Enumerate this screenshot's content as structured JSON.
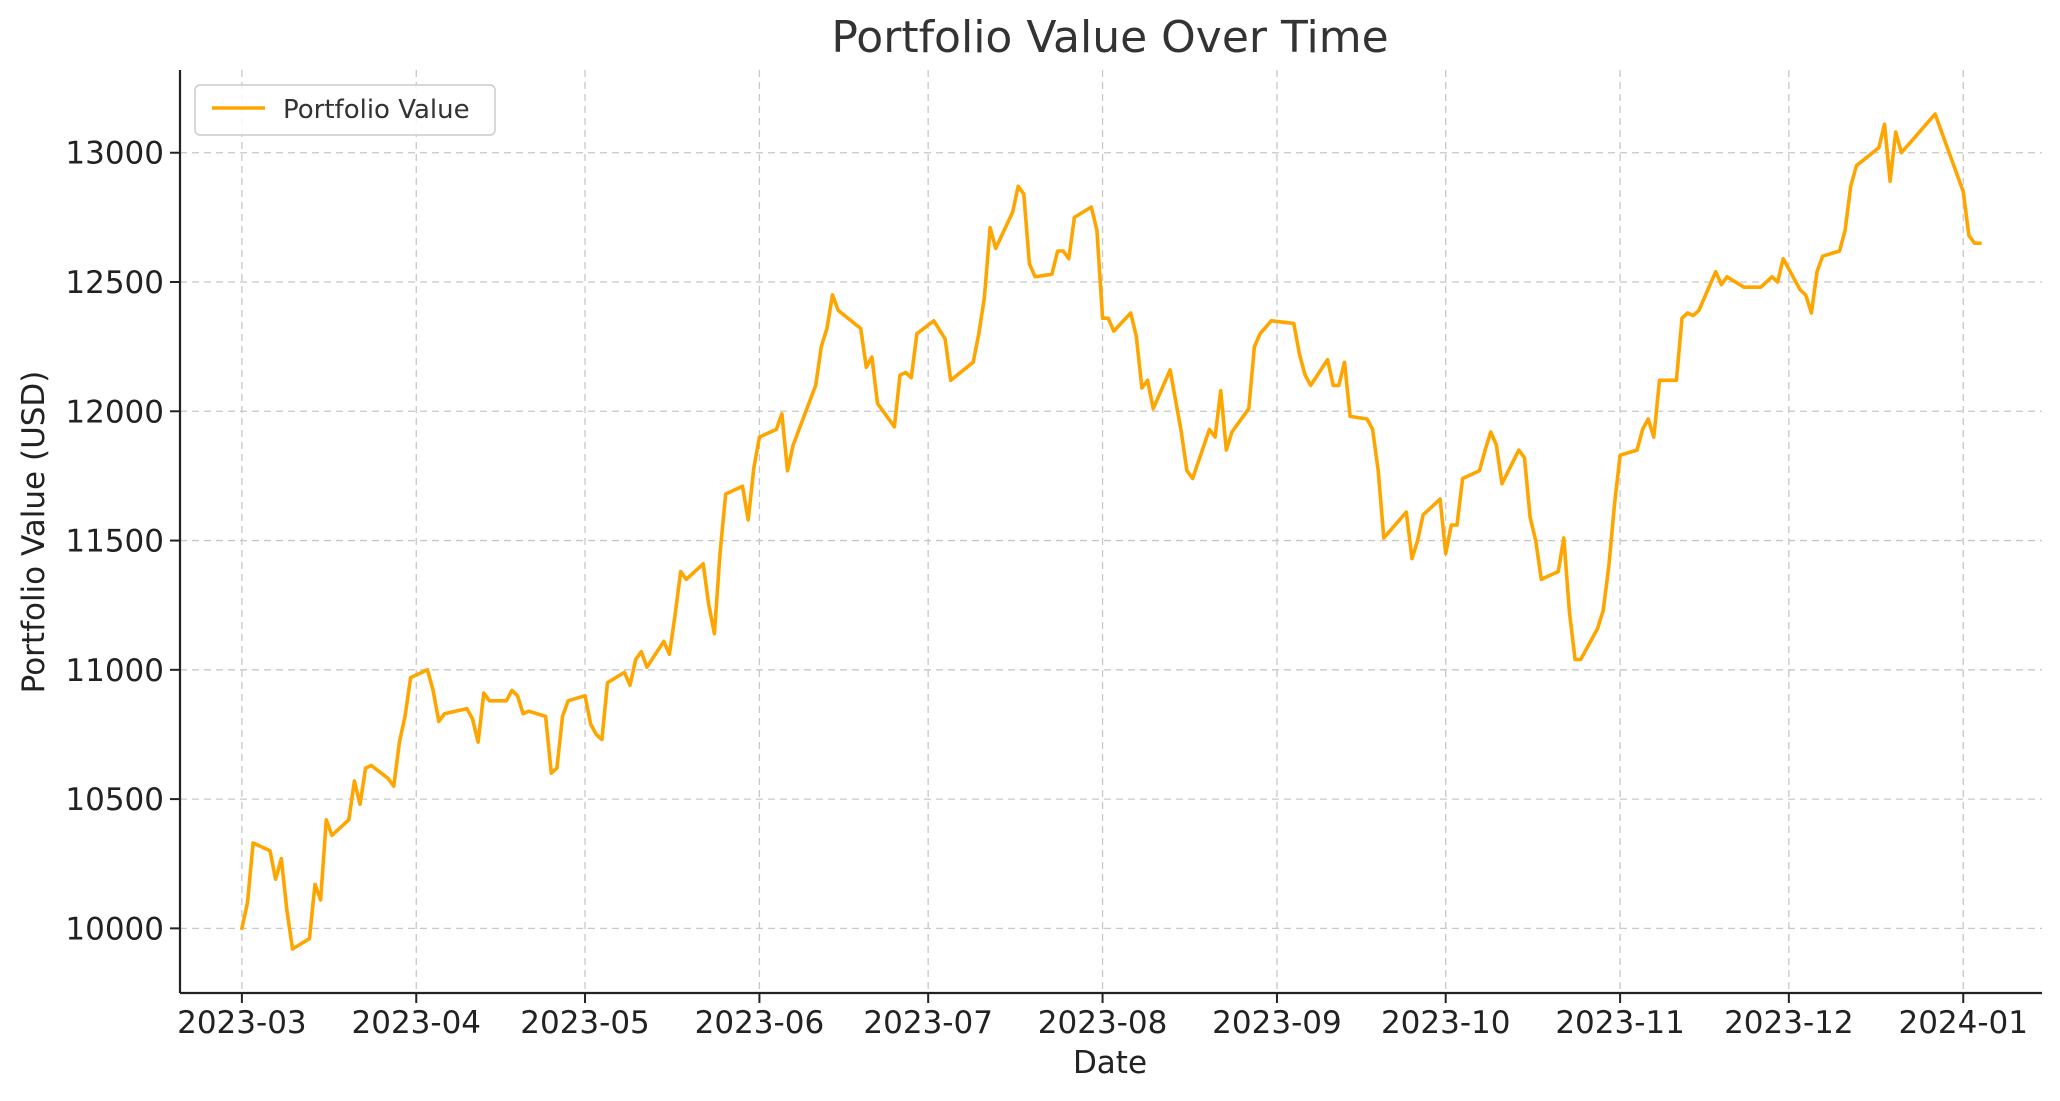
{
  "chart_data": {
    "type": "line",
    "title": "Portfolio Value Over Time",
    "xlabel": "Date",
    "ylabel": "Portfolio Value (USD)",
    "ylim": [
      9750,
      13320
    ],
    "x_ticks": [
      "2023-03",
      "2023-04",
      "2023-05",
      "2023-06",
      "2023-07",
      "2023-08",
      "2023-09",
      "2023-10",
      "2023-11",
      "2023-12",
      "2024-01"
    ],
    "x_tick_days": [
      0,
      31,
      61,
      92,
      122,
      153,
      184,
      214,
      245,
      275,
      306
    ],
    "y_ticks": [
      10000,
      10500,
      11000,
      11500,
      12000,
      12500,
      13000
    ],
    "grid": true,
    "legend": {
      "position": "top-left",
      "entries": [
        "Portfolio Value"
      ]
    },
    "series": [
      {
        "name": "Portfolio Value",
        "color": "#ffa500",
        "x_unit": "days since 2023-03-01",
        "points": [
          [
            0,
            10000
          ],
          [
            1,
            10100
          ],
          [
            2,
            10330
          ],
          [
            5,
            10300
          ],
          [
            6,
            10190
          ],
          [
            7,
            10270
          ],
          [
            8,
            10070
          ],
          [
            9,
            9920
          ],
          [
            12,
            9960
          ],
          [
            13,
            10170
          ],
          [
            14,
            10110
          ],
          [
            15,
            10420
          ],
          [
            16,
            10360
          ],
          [
            19,
            10420
          ],
          [
            20,
            10570
          ],
          [
            21,
            10480
          ],
          [
            22,
            10620
          ],
          [
            23,
            10630
          ],
          [
            26,
            10580
          ],
          [
            27,
            10550
          ],
          [
            28,
            10720
          ],
          [
            29,
            10820
          ],
          [
            30,
            10970
          ],
          [
            33,
            11000
          ],
          [
            34,
            10920
          ],
          [
            35,
            10800
          ],
          [
            36,
            10830
          ],
          [
            40,
            10850
          ],
          [
            41,
            10810
          ],
          [
            42,
            10720
          ],
          [
            43,
            10910
          ],
          [
            44,
            10880
          ],
          [
            47,
            10880
          ],
          [
            48,
            10920
          ],
          [
            49,
            10900
          ],
          [
            50,
            10830
          ],
          [
            51,
            10840
          ],
          [
            54,
            10820
          ],
          [
            55,
            10600
          ],
          [
            56,
            10620
          ],
          [
            57,
            10820
          ],
          [
            58,
            10880
          ],
          [
            61,
            10900
          ],
          [
            62,
            10790
          ],
          [
            63,
            10750
          ],
          [
            64,
            10730
          ],
          [
            65,
            10950
          ],
          [
            68,
            10990
          ],
          [
            69,
            10940
          ],
          [
            70,
            11040
          ],
          [
            71,
            11070
          ],
          [
            72,
            11010
          ],
          [
            75,
            11110
          ],
          [
            76,
            11060
          ],
          [
            77,
            11210
          ],
          [
            78,
            11380
          ],
          [
            79,
            11350
          ],
          [
            82,
            11410
          ],
          [
            83,
            11250
          ],
          [
            84,
            11140
          ],
          [
            85,
            11450
          ],
          [
            86,
            11680
          ],
          [
            89,
            11710
          ],
          [
            90,
            11580
          ],
          [
            91,
            11780
          ],
          [
            92,
            11900
          ],
          [
            95,
            11930
          ],
          [
            96,
            11990
          ],
          [
            97,
            11770
          ],
          [
            98,
            11870
          ],
          [
            102,
            12100
          ],
          [
            103,
            12250
          ],
          [
            104,
            12320
          ],
          [
            105,
            12450
          ],
          [
            106,
            12390
          ],
          [
            110,
            12320
          ],
          [
            111,
            12170
          ],
          [
            112,
            12210
          ],
          [
            113,
            12030
          ],
          [
            116,
            11940
          ],
          [
            117,
            12140
          ],
          [
            118,
            12150
          ],
          [
            119,
            12130
          ],
          [
            120,
            12300
          ],
          [
            123,
            12350
          ],
          [
            125,
            12280
          ],
          [
            126,
            12120
          ],
          [
            130,
            12190
          ],
          [
            131,
            12300
          ],
          [
            132,
            12440
          ],
          [
            133,
            12710
          ],
          [
            134,
            12630
          ],
          [
            137,
            12770
          ],
          [
            138,
            12870
          ],
          [
            139,
            12840
          ],
          [
            140,
            12570
          ],
          [
            141,
            12520
          ],
          [
            144,
            12530
          ],
          [
            145,
            12620
          ],
          [
            146,
            12620
          ],
          [
            147,
            12590
          ],
          [
            148,
            12750
          ],
          [
            151,
            12790
          ],
          [
            152,
            12700
          ],
          [
            153,
            12360
          ],
          [
            154,
            12360
          ],
          [
            155,
            12310
          ],
          [
            158,
            12380
          ],
          [
            159,
            12290
          ],
          [
            160,
            12090
          ],
          [
            161,
            12120
          ],
          [
            162,
            12010
          ],
          [
            165,
            12160
          ],
          [
            166,
            12040
          ],
          [
            167,
            11920
          ],
          [
            168,
            11770
          ],
          [
            169,
            11740
          ],
          [
            172,
            11930
          ],
          [
            173,
            11900
          ],
          [
            174,
            12080
          ],
          [
            175,
            11850
          ],
          [
            176,
            11920
          ],
          [
            179,
            12010
          ],
          [
            180,
            12250
          ],
          [
            181,
            12300
          ],
          [
            183,
            12350
          ],
          [
            187,
            12340
          ],
          [
            188,
            12220
          ],
          [
            189,
            12140
          ],
          [
            190,
            12100
          ],
          [
            193,
            12200
          ],
          [
            194,
            12100
          ],
          [
            195,
            12100
          ],
          [
            196,
            12190
          ],
          [
            197,
            11980
          ],
          [
            200,
            11970
          ],
          [
            201,
            11930
          ],
          [
            202,
            11770
          ],
          [
            203,
            11510
          ],
          [
            207,
            11610
          ],
          [
            208,
            11430
          ],
          [
            209,
            11500
          ],
          [
            210,
            11600
          ],
          [
            213,
            11660
          ],
          [
            214,
            11450
          ],
          [
            215,
            11560
          ],
          [
            216,
            11560
          ],
          [
            217,
            11740
          ],
          [
            220,
            11770
          ],
          [
            221,
            11850
          ],
          [
            222,
            11920
          ],
          [
            223,
            11870
          ],
          [
            224,
            11720
          ],
          [
            227,
            11850
          ],
          [
            228,
            11820
          ],
          [
            229,
            11590
          ],
          [
            230,
            11500
          ],
          [
            231,
            11350
          ],
          [
            234,
            11380
          ],
          [
            235,
            11510
          ],
          [
            236,
            11220
          ],
          [
            237,
            11040
          ],
          [
            238,
            11040
          ],
          [
            241,
            11160
          ],
          [
            242,
            11230
          ],
          [
            243,
            11400
          ],
          [
            244,
            11640
          ],
          [
            245,
            11830
          ],
          [
            248,
            11850
          ],
          [
            249,
            11930
          ],
          [
            250,
            11970
          ],
          [
            251,
            11900
          ],
          [
            252,
            12120
          ],
          [
            255,
            12120
          ],
          [
            256,
            12360
          ],
          [
            257,
            12380
          ],
          [
            258,
            12370
          ],
          [
            259,
            12390
          ],
          [
            262,
            12540
          ],
          [
            263,
            12490
          ],
          [
            264,
            12520
          ],
          [
            267,
            12480
          ],
          [
            270,
            12480
          ],
          [
            272,
            12520
          ],
          [
            273,
            12500
          ],
          [
            274,
            12590
          ],
          [
            277,
            12470
          ],
          [
            278,
            12450
          ],
          [
            279,
            12380
          ],
          [
            280,
            12540
          ],
          [
            281,
            12600
          ],
          [
            284,
            12620
          ],
          [
            285,
            12700
          ],
          [
            286,
            12870
          ],
          [
            287,
            12950
          ],
          [
            291,
            13020
          ],
          [
            292,
            13110
          ],
          [
            293,
            12890
          ],
          [
            294,
            13080
          ],
          [
            295,
            13000
          ],
          [
            301,
            13150
          ],
          [
            306,
            12850
          ],
          [
            307,
            12680
          ],
          [
            308,
            12650
          ],
          [
            309,
            12650
          ]
        ]
      }
    ]
  }
}
